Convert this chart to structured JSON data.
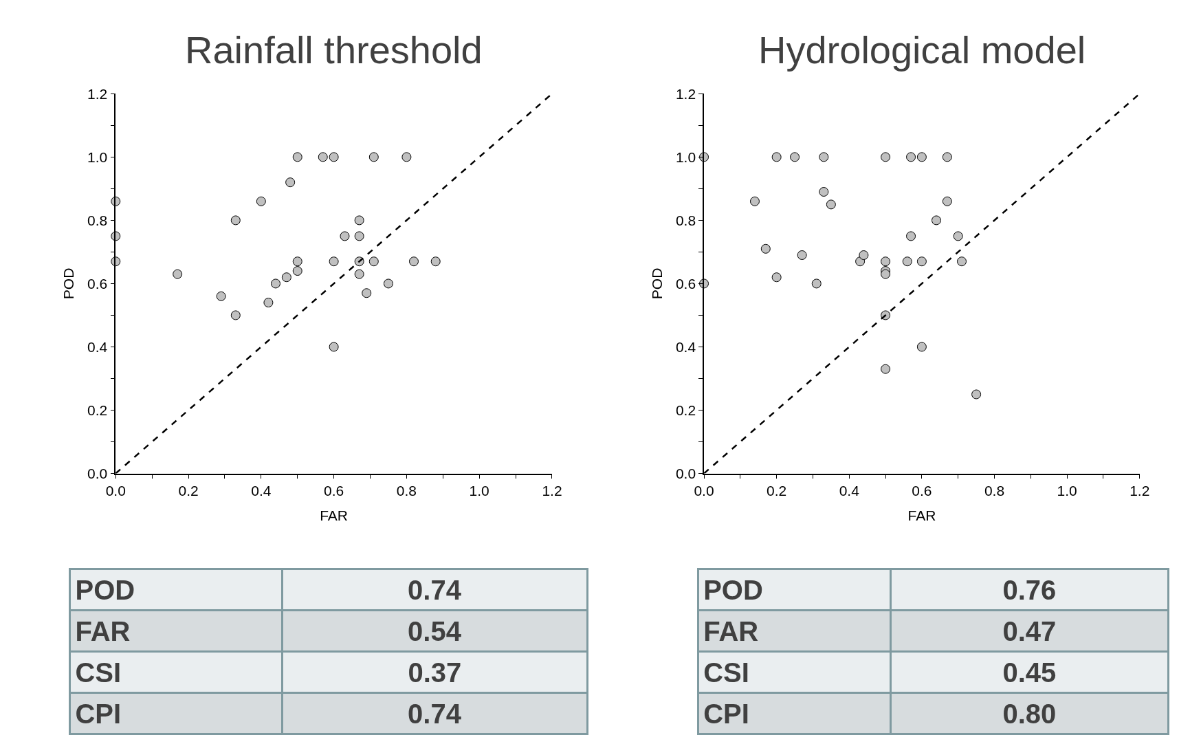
{
  "chart_data": [
    {
      "type": "scatter",
      "title": "Rainfall threshold",
      "xlabel": "FAR",
      "ylabel": "POD",
      "xlim": [
        0,
        1.2
      ],
      "ylim": [
        0,
        1.2
      ],
      "xticks": [
        {
          "value": 0,
          "label": "0.0"
        },
        {
          "value": 0.1,
          "label": null
        },
        0.2,
        {
          "value": 0.3,
          "label": null
        },
        0.4,
        {
          "value": 0.5,
          "label": null
        },
        0.6,
        {
          "value": 0.7,
          "label": null
        },
        0.8,
        {
          "value": 0.9,
          "label": null
        },
        {
          "value": 1,
          "label": "1.0"
        },
        {
          "value": 1.1,
          "label": null
        },
        1.2
      ],
      "yticks": [
        {
          "value": 0,
          "label": "0.0"
        },
        {
          "value": 0.1,
          "label": null
        },
        0.2,
        {
          "value": 0.3,
          "label": null
        },
        0.4,
        {
          "value": 0.5,
          "label": null
        },
        0.6,
        {
          "value": 0.7,
          "label": null
        },
        0.8,
        {
          "value": 0.9,
          "label": null
        },
        {
          "value": 1,
          "label": "1.0"
        },
        {
          "value": 1.1,
          "label": null
        },
        1.2
      ],
      "series": [
        {
          "type": "scatter",
          "marker": "circle",
          "color": "#c0c0c0",
          "x": [
            0,
            0,
            0,
            0.17,
            0.29,
            0.33,
            0.33,
            0.4,
            0.42,
            0.44,
            0.47,
            0.48,
            0.5,
            0.5,
            0.5,
            0.57,
            0.6,
            0.6,
            0.6,
            0.63,
            0.67,
            0.67,
            0.67,
            0.67,
            0.69,
            0.71,
            0.71,
            0.75,
            0.8,
            0.82,
            0.88
          ],
          "values": [
            0.86,
            0.75,
            0.67,
            0.63,
            0.56,
            0.8,
            0.5,
            0.86,
            0.54,
            0.6,
            0.62,
            0.92,
            1.0,
            0.67,
            0.64,
            1.0,
            1.0,
            0.67,
            0.4,
            0.75,
            0.8,
            0.75,
            0.67,
            0.63,
            0.57,
            1.0,
            0.67,
            0.6,
            1.0,
            0.67,
            0.67
          ]
        },
        {
          "type": "line",
          "marker": "none",
          "color": "#000000",
          "line_style": "dashed",
          "x": [
            0,
            1.2
          ],
          "values": [
            0,
            1.2
          ]
        }
      ]
    },
    {
      "type": "scatter",
      "title": "Hydrological model",
      "xlabel": "FAR",
      "ylabel": "POD",
      "xlim": [
        0,
        1.2
      ],
      "ylim": [
        0,
        1.2
      ],
      "xticks": [
        {
          "value": 0,
          "label": "0.0"
        },
        {
          "value": 0.1,
          "label": null
        },
        0.2,
        {
          "value": 0.3,
          "label": null
        },
        0.4,
        {
          "value": 0.5,
          "label": null
        },
        0.6,
        {
          "value": 0.7,
          "label": null
        },
        0.8,
        {
          "value": 0.9,
          "label": null
        },
        {
          "value": 1,
          "label": "1.0"
        },
        {
          "value": 1.1,
          "label": null
        },
        1.2
      ],
      "yticks": [
        {
          "value": 0,
          "label": "0.0"
        },
        {
          "value": 0.1,
          "label": null
        },
        0.2,
        {
          "value": 0.3,
          "label": null
        },
        0.4,
        {
          "value": 0.5,
          "label": null
        },
        0.6,
        {
          "value": 0.7,
          "label": null
        },
        0.8,
        {
          "value": 0.9,
          "label": null
        },
        {
          "value": 1,
          "label": "1.0"
        },
        {
          "value": 1.1,
          "label": null
        },
        1.2
      ],
      "series": [
        {
          "type": "scatter",
          "marker": "circle",
          "color": "#c0c0c0",
          "x": [
            0,
            0,
            0.14,
            0.17,
            0.2,
            0.2,
            0.25,
            0.27,
            0.31,
            0.33,
            0.33,
            0.35,
            0.43,
            0.44,
            0.5,
            0.5,
            0.5,
            0.5,
            0.5,
            0.5,
            0.56,
            0.57,
            0.57,
            0.6,
            0.6,
            0.6,
            0.64,
            0.67,
            0.67,
            0.7,
            0.71,
            0.75
          ],
          "values": [
            1.0,
            0.6,
            0.86,
            0.71,
            1.0,
            0.62,
            1.0,
            0.69,
            0.6,
            1.0,
            0.89,
            0.85,
            0.67,
            0.69,
            1.0,
            0.67,
            0.64,
            0.63,
            0.5,
            0.33,
            0.67,
            1.0,
            0.75,
            1.0,
            0.67,
            0.4,
            0.8,
            1.0,
            0.86,
            0.75,
            0.67,
            0.25
          ]
        },
        {
          "type": "line",
          "marker": "none",
          "color": "#000000",
          "line_style": "dashed",
          "x": [
            0,
            1.2
          ],
          "values": [
            0,
            1.2
          ]
        }
      ]
    },
    {
      "type": "other",
      "categories": [
        "POD",
        "FAR",
        "CSI",
        "CPI"
      ],
      "value_labels": [
        "0.74",
        "0.54",
        "0.37",
        "0.74"
      ],
      "colors": [
        "#eaeef0",
        "#d7dcde",
        "#eaeef0",
        "#d7dcde"
      ]
    },
    {
      "type": "other",
      "categories": [
        "POD",
        "FAR",
        "CSI",
        "CPI"
      ],
      "value_labels": [
        "0.76",
        "0.47",
        "0.45",
        "0.80"
      ],
      "colors": [
        "#eaeef0",
        "#d7dcde",
        "#eaeef0",
        "#d7dcde"
      ]
    }
  ]
}
